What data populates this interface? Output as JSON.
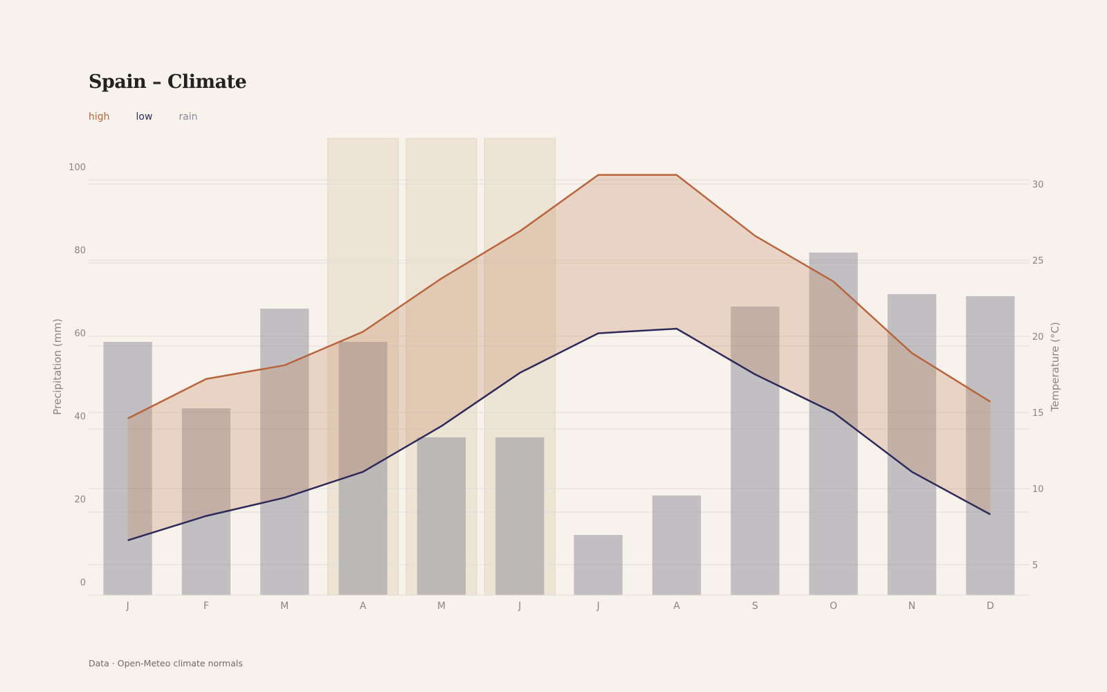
{
  "title": "Spain – Climate",
  "footnote": "Data · Open-Meteo climate normals",
  "legend": {
    "high": "high",
    "low": "low",
    "rain": "rain"
  },
  "colors": {
    "background": "#f7f2ec",
    "high": "#b8643c",
    "low": "#2d2a5a",
    "rain": "#8c8b96",
    "band_fill": "#c4845f",
    "highlight": "#e6d8c2",
    "grid": "#e2ddd6",
    "tick_text": "#8a857e"
  },
  "chart_data": {
    "type": "bar+line",
    "categories": [
      "J",
      "F",
      "M",
      "A",
      "M",
      "J",
      "J",
      "A",
      "S",
      "O",
      "N",
      "D"
    ],
    "series": [
      {
        "name": "rain",
        "type": "bar",
        "axis": "left",
        "values": [
          61,
          45,
          69,
          61,
          38,
          38,
          14.5,
          24,
          69.5,
          82.5,
          72.5,
          72
        ]
      },
      {
        "name": "high",
        "type": "line",
        "axis": "right",
        "values": [
          14.6,
          17.2,
          18.1,
          20.3,
          23.8,
          26.9,
          30.6,
          30.6,
          26.6,
          23.6,
          18.9,
          15.7
        ]
      },
      {
        "name": "low",
        "type": "line",
        "axis": "right",
        "values": [
          6.6,
          8.2,
          9.4,
          11.1,
          14.1,
          17.6,
          20.2,
          20.5,
          17.5,
          15.0,
          11.1,
          8.3
        ]
      }
    ],
    "range_band": "between high and low",
    "highlighted_months": [
      3,
      4,
      5
    ],
    "ylabel_left": "Precipitation (mm)",
    "ylabel_right": "Temperature (°C)",
    "ylim_left": [
      0,
      110
    ],
    "ylim_right": [
      3,
      33
    ],
    "yticks_left": [
      0,
      20,
      40,
      60,
      80,
      100
    ],
    "yticks_right": [
      5,
      10,
      15,
      20,
      25,
      30
    ],
    "grid": true
  }
}
